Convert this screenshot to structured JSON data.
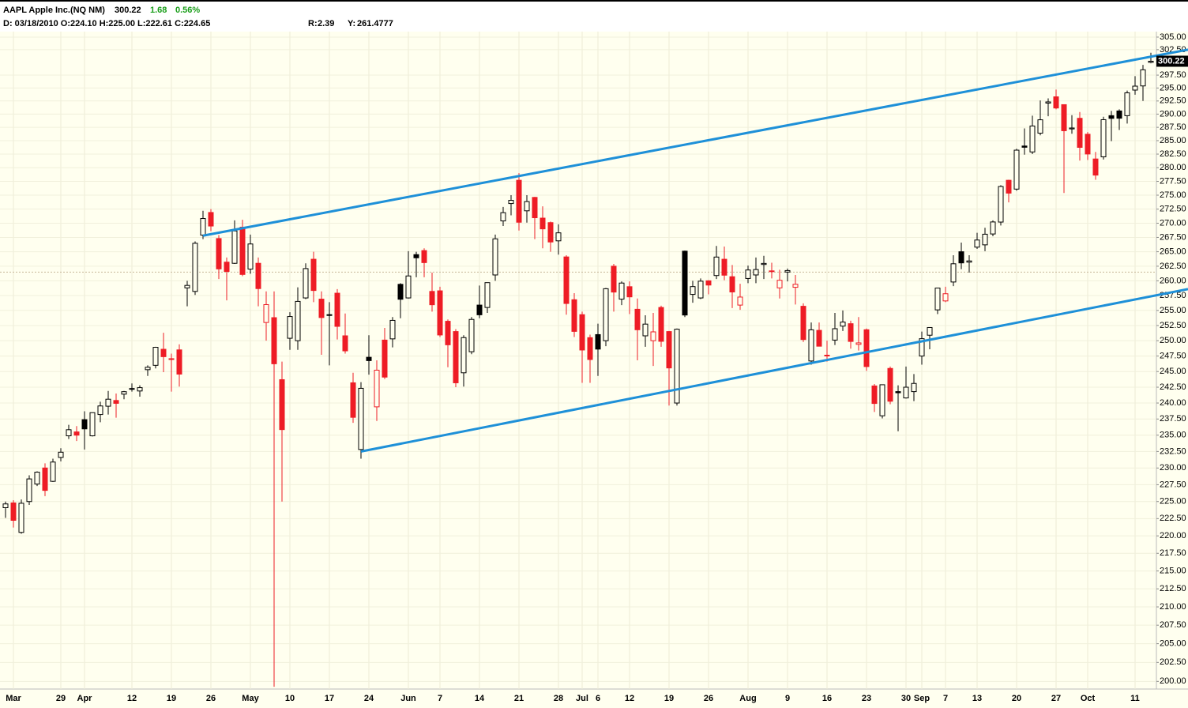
{
  "header": {
    "title": "AAPL Apple Inc.(NQ NM)",
    "change": "1.68",
    "change_pct": "0.56%",
    "info": "D: 03/18/2010 O:224.10 H:225.00 L:222.61 C:224.65",
    "r_label": "R:",
    "r_value": 2.39,
    "y_label": "Y:",
    "y_value": 261.4777
  },
  "chart_data": {
    "type": "candlestick",
    "categories": [
      null,
      "Mar",
      null,
      null,
      null,
      null,
      null,
      "29",
      null,
      null,
      "Apr",
      null,
      null,
      null,
      null,
      null,
      "12",
      null,
      null,
      null,
      null,
      "19",
      null,
      null,
      null,
      null,
      "26",
      null,
      null,
      null,
      null,
      "May",
      null,
      null,
      null,
      null,
      "10",
      null,
      null,
      null,
      null,
      "17",
      null,
      null,
      null,
      null,
      "24",
      null,
      null,
      null,
      null,
      "Jun",
      null,
      null,
      null,
      "7",
      null,
      null,
      null,
      null,
      "14",
      null,
      null,
      null,
      null,
      "21",
      null,
      null,
      null,
      null,
      "28",
      null,
      null,
      "Jul",
      null,
      "6",
      null,
      null,
      null,
      "12",
      null,
      null,
      null,
      null,
      "19",
      null,
      null,
      null,
      null,
      "26",
      null,
      null,
      null,
      null,
      "Aug",
      null,
      null,
      null,
      null,
      "9",
      null,
      null,
      null,
      null,
      "16",
      null,
      null,
      null,
      null,
      "23",
      null,
      null,
      null,
      null,
      "30",
      null,
      "Sep",
      null,
      null,
      "7",
      null,
      null,
      null,
      "13",
      null,
      null,
      null,
      null,
      "20",
      null,
      null,
      null,
      null,
      "27",
      null,
      null,
      null,
      "Oct",
      null,
      null,
      null,
      null,
      null,
      "11",
      null,
      null
    ],
    "open": [
      224.1,
      224.8,
      220.5,
      225,
      227.6,
      230,
      228,
      231.6,
      234.9,
      235.5,
      237.4,
      234.9,
      238.2,
      239.5,
      240.4,
      241.4,
      242.2,
      241.9,
      245.3,
      246,
      248.6,
      247,
      248.5,
      258.8,
      258.2,
      267.9,
      271.9,
      267.3,
      263.2,
      263,
      269.3,
      262,
      263,
      253,
      253.8,
      243.7,
      250.4,
      250,
      257.1,
      263.7,
      256.9,
      254.3,
      257.9,
      250.8,
      243.2,
      232.8,
      247.3,
      239.4,
      250.1,
      250.3,
      259.4,
      257.1,
      264.5,
      265.2,
      258.2,
      258.3,
      253.2,
      251.5,
      244.8,
      248.2,
      255.9,
      255.5,
      261,
      270.4,
      273.5,
      277.7,
      272.2,
      274.6,
      270.9,
      270.1,
      266.9,
      264.1,
      256.8,
      254.3,
      250.5,
      251,
      250,
      262.5,
      256.9,
      259,
      255.2,
      250.8,
      250,
      255.5,
      251.5,
      240,
      265.1,
      257.7,
      257.1,
      260,
      260.9,
      263.7,
      260.7,
      255.9,
      260.4,
      261,
      262.8,
      261.7,
      258.8,
      261.5,
      258.9,
      255.7,
      246.7,
      251.7,
      247.6,
      250.1,
      252.4,
      252.8,
      249.4,
      251.8,
      242.7,
      238,
      245.5,
      241.8,
      240.8,
      241.8,
      247.5,
      250.9,
      255.1,
      256.6,
      259.8,
      265,
      263.2,
      265.8,
      266.2,
      268.1,
      270.2,
      277.7,
      276.1,
      284,
      282.9,
      286.4,
      292.1,
      293.3,
      291.8,
      287.2,
      289.2,
      286.2,
      281.6,
      282,
      289.7,
      290.6,
      289.7,
      294.6,
      295.4,
      300
    ],
    "high": [
      225,
      225.2,
      225.3,
      228.9,
      229.5,
      230.7,
      231.4,
      233,
      236.6,
      236.4,
      238.7,
      238.5,
      240.2,
      241.9,
      241.5,
      241.9,
      243.1,
      242.8,
      246,
      249,
      251.3,
      247.9,
      249.4,
      260,
      266.8,
      272.2,
      272.5,
      267.9,
      264,
      270.5,
      270.6,
      268,
      264,
      258.2,
      258.2,
      246.6,
      254.7,
      258.9,
      263,
      265,
      258.2,
      256.4,
      258.6,
      254.5,
      244.8,
      243.3,
      250.9,
      246.8,
      252.1,
      253.9,
      259.6,
      265.1,
      265,
      265.6,
      261.4,
      259,
      253.5,
      251.9,
      250.9,
      253.9,
      259.2,
      259.7,
      268,
      272.9,
      275,
      279,
      275,
      274.7,
      273,
      270.3,
      269.8,
      264.4,
      257.9,
      254.8,
      251,
      252.8,
      258.8,
      262.9,
      259.9,
      259.9,
      257,
      254.2,
      254.6,
      255.8,
      251.6,
      252,
      265.2,
      260,
      260.4,
      260.1,
      266,
      265.9,
      262.7,
      259.5,
      262.6,
      264,
      264.3,
      263.1,
      261.9,
      262.1,
      261,
      256.2,
      253,
      253,
      250,
      254.6,
      255,
      253.3,
      253.9,
      252,
      243,
      242.9,
      245.8,
      242.8,
      245.8,
      244.6,
      251.5,
      252.2,
      258.8,
      259,
      264.4,
      266.6,
      264.4,
      268.3,
      269.2,
      270.5,
      276.8,
      277.8,
      283.5,
      287.3,
      289.7,
      292.6,
      293,
      294.7,
      291.8,
      289.8,
      290.4,
      286.6,
      282.9,
      289.5,
      290.6,
      290.9,
      294.5,
      297.3,
      299.5,
      301.9
    ],
    "low": [
      222.61,
      221.2,
      220.3,
      224.5,
      227.3,
      225.8,
      227.9,
      231,
      234.4,
      234.1,
      232.8,
      234.8,
      237,
      238.2,
      237.7,
      240.6,
      241.8,
      241,
      244.3,
      245.5,
      244.9,
      241.8,
      242.6,
      255.7,
      257.6,
      267.2,
      268.6,
      260.3,
      256.7,
      262.9,
      260.8,
      261.2,
      255.7,
      250,
      199.3,
      225,
      248.5,
      248.5,
      256.9,
      256.4,
      247.7,
      246,
      250.2,
      247.9,
      236.9,
      231.4,
      244.5,
      237.2,
      243.8,
      248.9,
      253.7,
      257,
      260.6,
      260.6,
      254.8,
      250.6,
      245.7,
      242.5,
      242.6,
      247.8,
      253.7,
      254.6,
      260,
      269.5,
      271.4,
      268.7,
      270.1,
      267.2,
      265.6,
      265,
      264.5,
      254.3,
      250.6,
      243.2,
      243.2,
      244.3,
      249.1,
      254.8,
      255.9,
      254.4,
      246.8,
      249,
      245.9,
      249,
      239.6,
      239.6,
      253.9,
      256.3,
      256.9,
      257.7,
      260.3,
      260.1,
      255.4,
      255.1,
      259.6,
      259.6,
      260.3,
      260.4,
      257,
      259.9,
      256,
      249.8,
      246.1,
      249.1,
      246.6,
      249.3,
      251.6,
      248.7,
      248.4,
      245.1,
      238.6,
      237.6,
      239.8,
      235.6,
      240.7,
      240.3,
      246.1,
      248.6,
      254.4,
      256.4,
      259.1,
      262,
      261.4,
      265.5,
      265.1,
      267.7,
      269.6,
      273.7,
      275.8,
      282.4,
      282.5,
      286,
      289.6,
      290.9,
      275.4,
      286.3,
      281.3,
      281.4,
      277.8,
      281.5,
      284.9,
      287,
      288.2,
      293.7,
      292.5,
      299.8
    ],
    "close": [
      224.65,
      222.25,
      224.75,
      228.36,
      229.37,
      226.65,
      230.9,
      232.39,
      235.84,
      235,
      235.97,
      238.49,
      239.54,
      240.6,
      239.95,
      241.79,
      242.29,
      242.43,
      245.69,
      248.92,
      247.4,
      247.07,
      244.59,
      259.22,
      266.47,
      270.83,
      269.5,
      262.04,
      261.6,
      268.64,
      261.09,
      266.35,
      258.68,
      255.98,
      246.25,
      235.86,
      253.99,
      256.52,
      262.09,
      258.36,
      253.82,
      254.22,
      252.36,
      248.34,
      237.76,
      242.32,
      246.76,
      245.22,
      244.11,
      253.35,
      256.88,
      260.83,
      263.95,
      263.12,
      255.96,
      250.94,
      249.33,
      243.2,
      250.51,
      253.51,
      254.28,
      259.69,
      267.25,
      271.87,
      274.07,
      270.17,
      273.85,
      270.97,
      269,
      266.7,
      268.3,
      256.17,
      251.53,
      248.48,
      246.94,
      248.63,
      258.66,
      258.09,
      259.62,
      257.28,
      251.8,
      252.73,
      251.45,
      249.9,
      245.58,
      251.89,
      254.24,
      259.02,
      259.94,
      259.28,
      264.08,
      260.96,
      258.11,
      257.25,
      261.85,
      261.93,
      262.98,
      261.7,
      260.09,
      261.75,
      259.41,
      250.19,
      251.79,
      249.1,
      247.64,
      251.97,
      253.07,
      249.88,
      249.64,
      245.8,
      239.93,
      242.89,
      240.28,
      241.62,
      242.5,
      243.1,
      250.33,
      252.17,
      258.77,
      257.81,
      262.92,
      263.07,
      263.41,
      267.04,
      268.06,
      270.22,
      276.57,
      275.37,
      283.23,
      283.77,
      287.75,
      288.92,
      292.32,
      291.16,
      286.86,
      287.37,
      283.75,
      282.52,
      278.64,
      288.94,
      289.19,
      289.22,
      294.07,
      295.36,
      298.54,
      300.22
    ],
    "up_color": "#000000",
    "down_color": "#ee1c25",
    "log_y": true,
    "grid": true,
    "ylim": [
      199,
      306.1
    ],
    "yticks": [
      {
        "value": 200,
        "label": "200.00"
      },
      {
        "value": 202.5,
        "label": "202.50"
      },
      {
        "value": 205,
        "label": "205.00"
      },
      {
        "value": 207.5,
        "label": "207.50"
      },
      {
        "value": 210,
        "label": "210.00"
      },
      {
        "value": 212.5,
        "label": "212.50"
      },
      {
        "value": 215,
        "label": "215.00"
      },
      {
        "value": 217.5,
        "label": "217.50"
      },
      {
        "value": 220,
        "label": "220.00"
      },
      {
        "value": 222.5,
        "label": "222.50"
      },
      {
        "value": 225,
        "label": "225.00"
      },
      {
        "value": 227.5,
        "label": "227.50"
      },
      {
        "value": 230,
        "label": "230.00"
      },
      {
        "value": 232.5,
        "label": "232.50"
      },
      {
        "value": 235,
        "label": "235.00"
      },
      {
        "value": 237.5,
        "label": "237.50"
      },
      {
        "value": 240,
        "label": "240.00"
      },
      {
        "value": 242.5,
        "label": "242.50"
      },
      {
        "value": 245,
        "label": "245.00"
      },
      {
        "value": 247.5,
        "label": "247.50"
      },
      {
        "value": 250,
        "label": "250.00"
      },
      {
        "value": 252.5,
        "label": "252.50"
      },
      {
        "value": 255,
        "label": "255.00"
      },
      {
        "value": 257.5,
        "label": "257.50"
      },
      {
        "value": 260,
        "label": "260.00"
      },
      {
        "value": 262.5,
        "label": "262.50"
      },
      {
        "value": 265,
        "label": "265.00"
      },
      {
        "value": 267.5,
        "label": "267.50"
      },
      {
        "value": 270,
        "label": "270.00"
      },
      {
        "value": 272.5,
        "label": "272.50"
      },
      {
        "value": 275,
        "label": "275.00"
      },
      {
        "value": 277.5,
        "label": "277.50"
      },
      {
        "value": 280,
        "label": "280.00"
      },
      {
        "value": 282.5,
        "label": "282.50"
      },
      {
        "value": 285,
        "label": "285.00"
      },
      {
        "value": 287.5,
        "label": "287.50"
      },
      {
        "value": 290,
        "label": "290.00"
      },
      {
        "value": 292.5,
        "label": "292.50"
      },
      {
        "value": 295,
        "label": "295.00"
      },
      {
        "value": 297.5,
        "label": "297.50"
      },
      {
        "value": 302.5,
        "label": "302.50"
      },
      {
        "value": 305,
        "label": "305.00"
      }
    ],
    "trendlines": [
      {
        "color": "#1e90d8",
        "points": [
          [
            25,
            267.8
          ],
          [
            149.7,
            302.5
          ]
        ]
      },
      {
        "color": "#1e90d8",
        "points": [
          [
            45,
            232.5
          ],
          [
            149.7,
            258.6
          ]
        ]
      }
    ]
  }
}
